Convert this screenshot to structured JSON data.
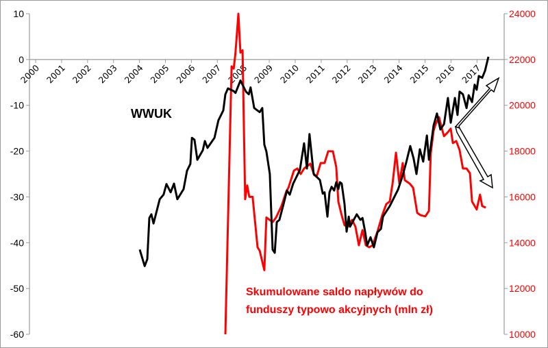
{
  "chart_data": {
    "type": "line",
    "title": "",
    "annotations": {
      "wwuk_label": "WWUK",
      "red_label_line1": "Skumulowane saldo napływów do",
      "red_label_line2": "funduszy typowo akcyjnych (mln zł)"
    },
    "x_ticks": [
      "2000",
      "2001",
      "2002",
      "2003",
      "2004",
      "2005",
      "2006",
      "2007",
      "2008",
      "2009",
      "2010",
      "2011",
      "2012",
      "2013",
      "2014",
      "2015",
      "2016",
      "2017"
    ],
    "xlim": [
      2000,
      2018.05
    ],
    "y_left": {
      "range": [
        -60,
        10
      ],
      "ticks": [
        "10",
        "0",
        "-10",
        "-20",
        "-30",
        "-40",
        "-50",
        "-60"
      ],
      "tick_values": [
        10,
        0,
        -10,
        -20,
        -30,
        -40,
        -50,
        -60
      ]
    },
    "y_right": {
      "range": [
        10000,
        24000
      ],
      "ticks": [
        "24000",
        "22000",
        "20000",
        "18000",
        "16000",
        "14000",
        "12000",
        "10000"
      ],
      "tick_values": [
        24000,
        22000,
        20000,
        18000,
        16000,
        14000,
        12000,
        10000
      ]
    },
    "colors": {
      "wwuk": "#000000",
      "flows": "#ff0000",
      "axis": "#9a9a9a"
    },
    "series": [
      {
        "name": "WWUK",
        "axis": "left",
        "color": "#000000",
        "points": [
          [
            2004.01,
            -41.5
          ],
          [
            2004.2,
            -45.1
          ],
          [
            2004.3,
            -43.6
          ],
          [
            2004.38,
            -34.6
          ],
          [
            2004.46,
            -33.8
          ],
          [
            2004.54,
            -35.8
          ],
          [
            2004.78,
            -30.5
          ],
          [
            2004.93,
            -29.5
          ],
          [
            2005.04,
            -27.2
          ],
          [
            2005.2,
            -29.0
          ],
          [
            2005.33,
            -27.1
          ],
          [
            2005.46,
            -30.5
          ],
          [
            2005.57,
            -29.5
          ],
          [
            2005.7,
            -28.3
          ],
          [
            2005.83,
            -24.3
          ],
          [
            2005.96,
            -22.8
          ],
          [
            2006.02,
            -17.1
          ],
          [
            2006.12,
            -17.5
          ],
          [
            2006.23,
            -21.9
          ],
          [
            2006.44,
            -19.8
          ],
          [
            2006.52,
            -17.8
          ],
          [
            2006.62,
            -19.3
          ],
          [
            2006.89,
            -17.1
          ],
          [
            2007.04,
            -13.3
          ],
          [
            2007.23,
            -11.1
          ],
          [
            2007.31,
            -7.6
          ],
          [
            2007.41,
            -6.3
          ],
          [
            2007.63,
            -6.9
          ],
          [
            2007.7,
            -7.3
          ],
          [
            2007.89,
            -4.6
          ],
          [
            2008.1,
            -7.0
          ],
          [
            2008.21,
            -7.6
          ],
          [
            2008.28,
            -6.1
          ],
          [
            2008.42,
            -10.6
          ],
          [
            2008.63,
            -11.5
          ],
          [
            2008.73,
            -10.6
          ],
          [
            2008.81,
            -18.6
          ],
          [
            2008.89,
            -20.1
          ],
          [
            2009.02,
            -25.0
          ],
          [
            2009.13,
            -41.5
          ],
          [
            2009.21,
            -42.2
          ],
          [
            2009.29,
            -35.5
          ],
          [
            2009.39,
            -35.0
          ],
          [
            2009.55,
            -31.6
          ],
          [
            2009.68,
            -28.6
          ],
          [
            2009.79,
            -29.5
          ],
          [
            2009.92,
            -27.1
          ],
          [
            2010.18,
            -24.1
          ],
          [
            2010.34,
            -18.3
          ],
          [
            2010.45,
            -23.8
          ],
          [
            2010.55,
            -16.3
          ],
          [
            2010.71,
            -25.0
          ],
          [
            2010.95,
            -26.3
          ],
          [
            2011.06,
            -29.3
          ],
          [
            2011.13,
            -29.0
          ],
          [
            2011.24,
            -34.3
          ],
          [
            2011.32,
            -29.0
          ],
          [
            2011.4,
            -27.8
          ],
          [
            2011.5,
            -28.6
          ],
          [
            2011.58,
            -26.8
          ],
          [
            2011.66,
            -28.3
          ],
          [
            2011.72,
            -26.8
          ],
          [
            2011.79,
            -27.1
          ],
          [
            2011.9,
            -31.6
          ],
          [
            2011.98,
            -37.6
          ],
          [
            2012.06,
            -34.3
          ],
          [
            2012.11,
            -36.5
          ],
          [
            2012.37,
            -33.8
          ],
          [
            2012.51,
            -35.0
          ],
          [
            2012.59,
            -34.6
          ],
          [
            2012.69,
            -37.6
          ],
          [
            2012.77,
            -40.6
          ],
          [
            2012.9,
            -38.8
          ],
          [
            2013.03,
            -41.0
          ],
          [
            2013.17,
            -37.7
          ],
          [
            2013.3,
            -37.0
          ],
          [
            2013.38,
            -34.3
          ],
          [
            2013.64,
            -32.0
          ],
          [
            2013.96,
            -28.4
          ],
          [
            2014.14,
            -25.3
          ],
          [
            2014.27,
            -22.6
          ],
          [
            2014.43,
            -18.9
          ],
          [
            2014.56,
            -21.6
          ],
          [
            2014.67,
            -25.0
          ],
          [
            2014.8,
            -19.6
          ],
          [
            2014.93,
            -22.3
          ],
          [
            2015.07,
            -16.6
          ],
          [
            2015.15,
            -21.9
          ],
          [
            2015.33,
            -14.4
          ],
          [
            2015.46,
            -11.8
          ],
          [
            2015.59,
            -15.3
          ],
          [
            2015.73,
            -14.1
          ],
          [
            2015.88,
            -8.4
          ],
          [
            2015.99,
            -13.8
          ],
          [
            2016.15,
            -8.4
          ],
          [
            2016.25,
            -12.1
          ],
          [
            2016.33,
            -7.0
          ],
          [
            2016.46,
            -7.6
          ],
          [
            2016.6,
            -10.6
          ],
          [
            2016.68,
            -7.8
          ],
          [
            2016.81,
            -9.3
          ],
          [
            2016.91,
            -5.5
          ],
          [
            2016.99,
            -6.6
          ],
          [
            2017.07,
            -3.6
          ],
          [
            2017.2,
            -4.0
          ],
          [
            2017.31,
            -2.5
          ],
          [
            2017.44,
            0.6
          ]
        ]
      },
      {
        "name": "Skumulowane saldo napływów do funduszy typowo akcyjnych (mln zł)",
        "axis": "right",
        "color": "#ff0000",
        "points": [
          [
            2007.31,
            10000
          ],
          [
            2007.55,
            21700
          ],
          [
            2007.63,
            21600
          ],
          [
            2007.7,
            22300
          ],
          [
            2007.81,
            24000
          ],
          [
            2007.89,
            22300
          ],
          [
            2007.97,
            22400
          ],
          [
            2008.07,
            15900
          ],
          [
            2008.15,
            16500
          ],
          [
            2008.23,
            16000
          ],
          [
            2008.36,
            16000
          ],
          [
            2008.55,
            13800
          ],
          [
            2008.63,
            13650
          ],
          [
            2008.81,
            12800
          ],
          [
            2008.89,
            15100
          ],
          [
            2009.13,
            14900
          ],
          [
            2009.26,
            15100
          ],
          [
            2009.47,
            15600
          ],
          [
            2009.66,
            16250
          ],
          [
            2009.74,
            16400
          ],
          [
            2009.95,
            17150
          ],
          [
            2010.08,
            17240
          ],
          [
            2010.21,
            17000
          ],
          [
            2010.34,
            17240
          ],
          [
            2010.58,
            17450
          ],
          [
            2010.74,
            16940
          ],
          [
            2010.84,
            16940
          ],
          [
            2010.98,
            17480
          ],
          [
            2011.13,
            17480
          ],
          [
            2011.27,
            17990
          ],
          [
            2011.45,
            17990
          ],
          [
            2011.58,
            17300
          ],
          [
            2011.66,
            15800
          ],
          [
            2011.79,
            15200
          ],
          [
            2011.9,
            14760
          ],
          [
            2012.03,
            14700
          ],
          [
            2012.19,
            15000
          ],
          [
            2012.32,
            14700
          ],
          [
            2012.45,
            13890
          ],
          [
            2012.59,
            14550
          ],
          [
            2012.72,
            13890
          ],
          [
            2012.85,
            13800
          ],
          [
            2012.98,
            13890
          ],
          [
            2013.17,
            14490
          ],
          [
            2013.35,
            15200
          ],
          [
            2013.51,
            15690
          ],
          [
            2013.64,
            15800
          ],
          [
            2013.75,
            16580
          ],
          [
            2013.88,
            17930
          ],
          [
            2014.01,
            16580
          ],
          [
            2014.14,
            17480
          ],
          [
            2014.22,
            16730
          ],
          [
            2014.41,
            16580
          ],
          [
            2014.54,
            16400
          ],
          [
            2014.7,
            15300
          ],
          [
            2014.83,
            15200
          ],
          [
            2015.01,
            15150
          ],
          [
            2015.15,
            15390
          ],
          [
            2015.22,
            17900
          ],
          [
            2015.33,
            18890
          ],
          [
            2015.41,
            19180
          ],
          [
            2015.54,
            19480
          ],
          [
            2015.62,
            19100
          ],
          [
            2015.73,
            18650
          ],
          [
            2015.86,
            18800
          ],
          [
            2015.99,
            18980
          ],
          [
            2016.07,
            18350
          ],
          [
            2016.2,
            18440
          ],
          [
            2016.33,
            18050
          ],
          [
            2016.46,
            17240
          ],
          [
            2016.6,
            17240
          ],
          [
            2016.73,
            17030
          ],
          [
            2016.81,
            15800
          ],
          [
            2016.99,
            15450
          ],
          [
            2017.12,
            16100
          ],
          [
            2017.2,
            15600
          ],
          [
            2017.34,
            15530
          ]
        ]
      }
    ]
  }
}
